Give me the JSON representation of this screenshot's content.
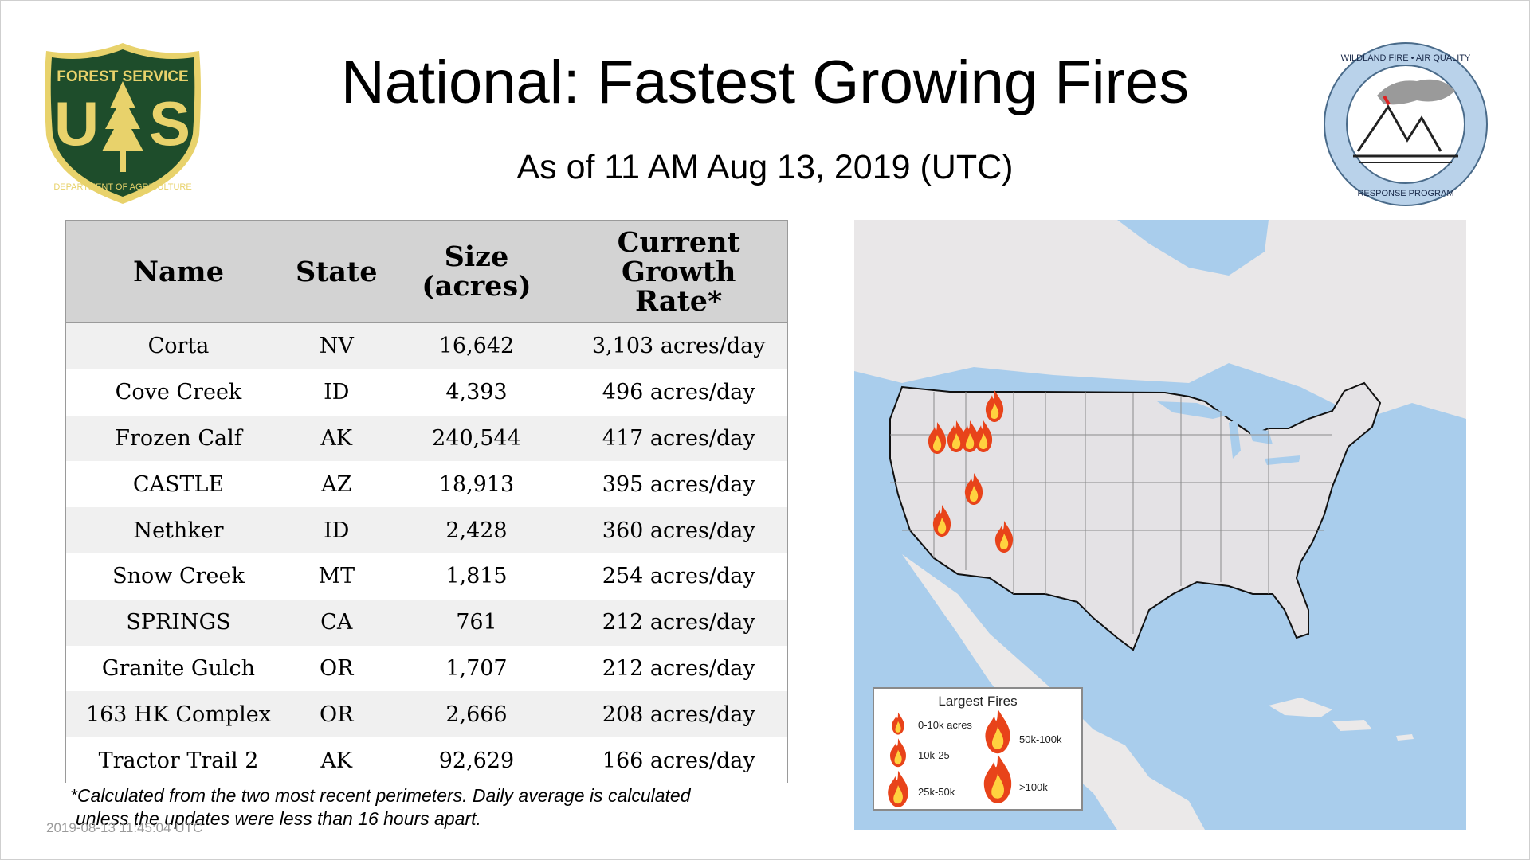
{
  "header": {
    "title": "National: Fastest Growing Fires",
    "subtitle": "As of 11 AM Aug 13, 2019 (UTC)"
  },
  "logos": {
    "left": {
      "top_text": "FOREST SERVICE",
      "letters": "U S",
      "bottom_text": "DEPARTMENT OF AGRICULTURE",
      "colors": {
        "shield": "#1e4d2b",
        "gold": "#e8d26b"
      }
    },
    "right": {
      "top_text": "WILDLAND FIRE • AIR QUALITY",
      "bottom_text": "RESPONSE PROGRAM",
      "colors": {
        "ring": "#b9d2ea",
        "smoke": "#9a9a9a"
      }
    }
  },
  "table": {
    "headers": {
      "name": "Name",
      "state": "State",
      "size_line1": "Size",
      "size_line2": "(acres)",
      "rate_line1": "Current",
      "rate_line2": "Growth",
      "rate_line3": "Rate*"
    },
    "rows": [
      {
        "name": "Corta",
        "state": "NV",
        "size": "16,642",
        "rate": "3,103 acres/day"
      },
      {
        "name": "Cove Creek",
        "state": "ID",
        "size": "4,393",
        "rate": "496 acres/day"
      },
      {
        "name": "Frozen Calf",
        "state": "AK",
        "size": "240,544",
        "rate": "417 acres/day"
      },
      {
        "name": "CASTLE",
        "state": "AZ",
        "size": "18,913",
        "rate": "395 acres/day"
      },
      {
        "name": "Nethker",
        "state": "ID",
        "size": "2,428",
        "rate": "360 acres/day"
      },
      {
        "name": "Snow Creek",
        "state": "MT",
        "size": "1,815",
        "rate": "254 acres/day"
      },
      {
        "name": "SPRINGS",
        "state": "CA",
        "size": "761",
        "rate": "212 acres/day"
      },
      {
        "name": "Granite Gulch",
        "state": "OR",
        "size": "1,707",
        "rate": "212 acres/day"
      },
      {
        "name": "163 HK Complex",
        "state": "OR",
        "size": "2,666",
        "rate": "208 acres/day"
      },
      {
        "name": "Tractor Trail 2",
        "state": "AK",
        "size": "92,629",
        "rate": "166 acres/day"
      }
    ]
  },
  "footnote": {
    "line1": "*Calculated from the two most recent perimeters. Daily average is calculated",
    "line2": "unless the updates were less than 16 hours apart."
  },
  "timestamp": "2019-08-13 11:45:04 UTC",
  "map": {
    "legend": {
      "title": "Largest Fires",
      "items": [
        "0-10k acres",
        "10k-25",
        "25k-50k",
        "50k-100k",
        ">100k"
      ]
    },
    "colors": {
      "ocean": "#a9cdec",
      "land": "#ebe9e9",
      "us": "#e6e4e6",
      "fire_outer": "#e8431a",
      "fire_inner": "#ffd23f"
    }
  }
}
